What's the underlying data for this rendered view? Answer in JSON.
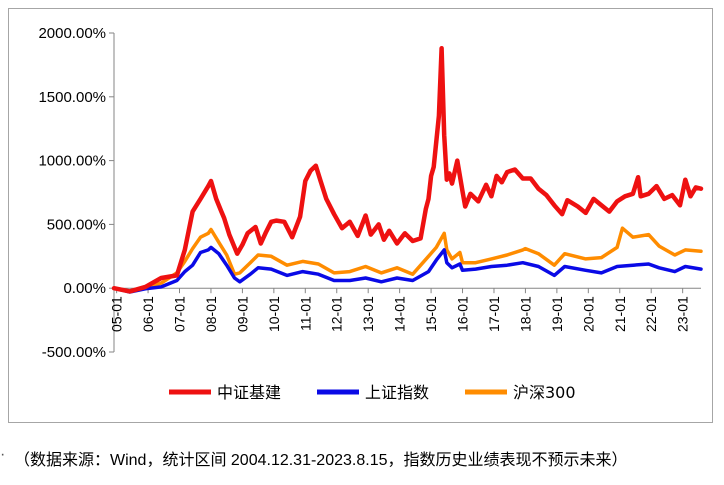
{
  "chart_data": {
    "type": "line",
    "y_format": "percent_2dp",
    "ylim": [
      -500,
      2000
    ],
    "y_ticks": [
      -500,
      0,
      500,
      1000,
      1500,
      2000
    ],
    "y_tick_labels": [
      "-500.00%",
      "0.00%",
      "500.00%",
      "1000.00%",
      "1500.00%",
      "2000.00%"
    ],
    "x_ticks": [
      "05-01",
      "06-01",
      "07-01",
      "08-01",
      "09-01",
      "10-01",
      "11-01",
      "12-01",
      "13-01",
      "14-01",
      "15-01",
      "16-01",
      "17-01",
      "18-01",
      "19-01",
      "20-01",
      "21-01",
      "22-01",
      "23-01"
    ],
    "x_start": "04-12",
    "x_end": "23-08",
    "grid": false,
    "legend_position": "bottom",
    "series": [
      {
        "name": "中证基建",
        "color": "#ee1111",
        "x": [
          "04-12",
          "05-06",
          "05-12",
          "06-06",
          "06-12",
          "07-03",
          "07-06",
          "07-09",
          "07-12",
          "08-01",
          "08-03",
          "08-05",
          "08-06",
          "08-08",
          "08-11",
          "09-01",
          "09-03",
          "09-06",
          "09-08",
          "09-10",
          "09-12",
          "10-02",
          "10-05",
          "10-08",
          "10-11",
          "11-01",
          "11-03",
          "11-05",
          "11-07",
          "11-09",
          "11-12",
          "12-03",
          "12-06",
          "12-09",
          "12-12",
          "13-02",
          "13-05",
          "13-07",
          "13-09",
          "13-12",
          "14-03",
          "14-06",
          "14-09",
          "14-11",
          "14-12",
          "15-01",
          "15-02",
          "15-04",
          "15-05",
          "15-06",
          "15-07",
          "15-08",
          "15-09",
          "15-11",
          "16-01",
          "16-02",
          "16-04",
          "16-07",
          "16-10",
          "16-12",
          "17-02",
          "17-04",
          "17-06",
          "17-09",
          "17-12",
          "18-03",
          "18-06",
          "18-09",
          "18-12",
          "19-03",
          "19-05",
          "19-09",
          "19-12",
          "20-03",
          "20-06",
          "20-09",
          "20-12",
          "21-03",
          "21-06",
          "21-08",
          "21-09",
          "21-12",
          "22-03",
          "22-06",
          "22-09",
          "22-12",
          "23-02",
          "23-04",
          "23-06",
          "23-08"
        ],
        "values": [
          0,
          -25,
          10,
          80,
          100,
          300,
          600,
          700,
          800,
          840,
          700,
          600,
          550,
          420,
          270,
          340,
          430,
          480,
          350,
          440,
          520,
          530,
          520,
          400,
          560,
          840,
          920,
          960,
          830,
          700,
          580,
          470,
          520,
          410,
          570,
          420,
          500,
          380,
          450,
          350,
          430,
          370,
          390,
          620,
          700,
          880,
          950,
          1350,
          1880,
          1200,
          850,
          900,
          820,
          1000,
          760,
          640,
          740,
          680,
          810,
          720,
          880,
          830,
          910,
          930,
          860,
          860,
          780,
          730,
          650,
          580,
          690,
          640,
          590,
          700,
          650,
          600,
          680,
          720,
          740,
          870,
          720,
          740,
          800,
          700,
          730,
          650,
          850,
          720,
          790,
          780
        ]
      },
      {
        "name": "上证指数",
        "color": "#0a0ae6",
        "x": [
          "04-12",
          "05-06",
          "05-12",
          "06-06",
          "06-12",
          "07-03",
          "07-06",
          "07-09",
          "07-12",
          "08-01",
          "08-04",
          "08-07",
          "08-10",
          "08-12",
          "09-04",
          "09-07",
          "09-12",
          "10-06",
          "10-12",
          "11-06",
          "11-12",
          "12-06",
          "12-12",
          "13-06",
          "13-12",
          "14-06",
          "14-12",
          "15-03",
          "15-06",
          "15-07",
          "15-09",
          "15-12",
          "16-01",
          "16-06",
          "16-12",
          "17-06",
          "17-12",
          "18-06",
          "18-12",
          "19-04",
          "19-12",
          "20-06",
          "20-12",
          "21-06",
          "21-12",
          "22-04",
          "22-10",
          "23-02",
          "23-08"
        ],
        "values": [
          0,
          -30,
          -5,
          10,
          60,
          130,
          180,
          280,
          300,
          320,
          270,
          180,
          80,
          50,
          110,
          160,
          150,
          100,
          130,
          110,
          60,
          60,
          80,
          50,
          80,
          60,
          130,
          220,
          300,
          200,
          160,
          190,
          140,
          150,
          170,
          180,
          200,
          170,
          100,
          170,
          140,
          120,
          170,
          180,
          190,
          160,
          130,
          170,
          150
        ]
      },
      {
        "name": "沪深300",
        "color": "#ff8c00",
        "x": [
          "04-12",
          "05-06",
          "05-12",
          "06-06",
          "06-12",
          "07-03",
          "07-06",
          "07-09",
          "07-12",
          "08-01",
          "08-04",
          "08-07",
          "08-10",
          "08-12",
          "09-04",
          "09-07",
          "09-12",
          "10-06",
          "10-12",
          "11-06",
          "11-12",
          "12-06",
          "12-12",
          "13-06",
          "13-12",
          "14-06",
          "14-12",
          "15-03",
          "15-06",
          "15-07",
          "15-09",
          "15-12",
          "16-01",
          "16-06",
          "16-12",
          "17-06",
          "17-12",
          "18-01",
          "18-06",
          "18-12",
          "19-04",
          "19-12",
          "20-06",
          "20-12",
          "21-02",
          "21-06",
          "21-12",
          "22-04",
          "22-10",
          "23-02",
          "23-08"
        ],
        "values": [
          0,
          -25,
          5,
          40,
          120,
          210,
          310,
          400,
          430,
          460,
          360,
          260,
          110,
          120,
          200,
          260,
          250,
          180,
          210,
          190,
          120,
          130,
          170,
          120,
          160,
          110,
          250,
          320,
          430,
          300,
          230,
          280,
          200,
          200,
          230,
          260,
          300,
          310,
          270,
          180,
          270,
          230,
          240,
          320,
          470,
          400,
          420,
          330,
          260,
          300,
          290
        ]
      }
    ]
  },
  "caption": {
    "marker": "·",
    "text": "（数据来源：Wind，统计区间 2004.12.31-2023.8.15，指数历史业绩表现不预示未来）"
  }
}
